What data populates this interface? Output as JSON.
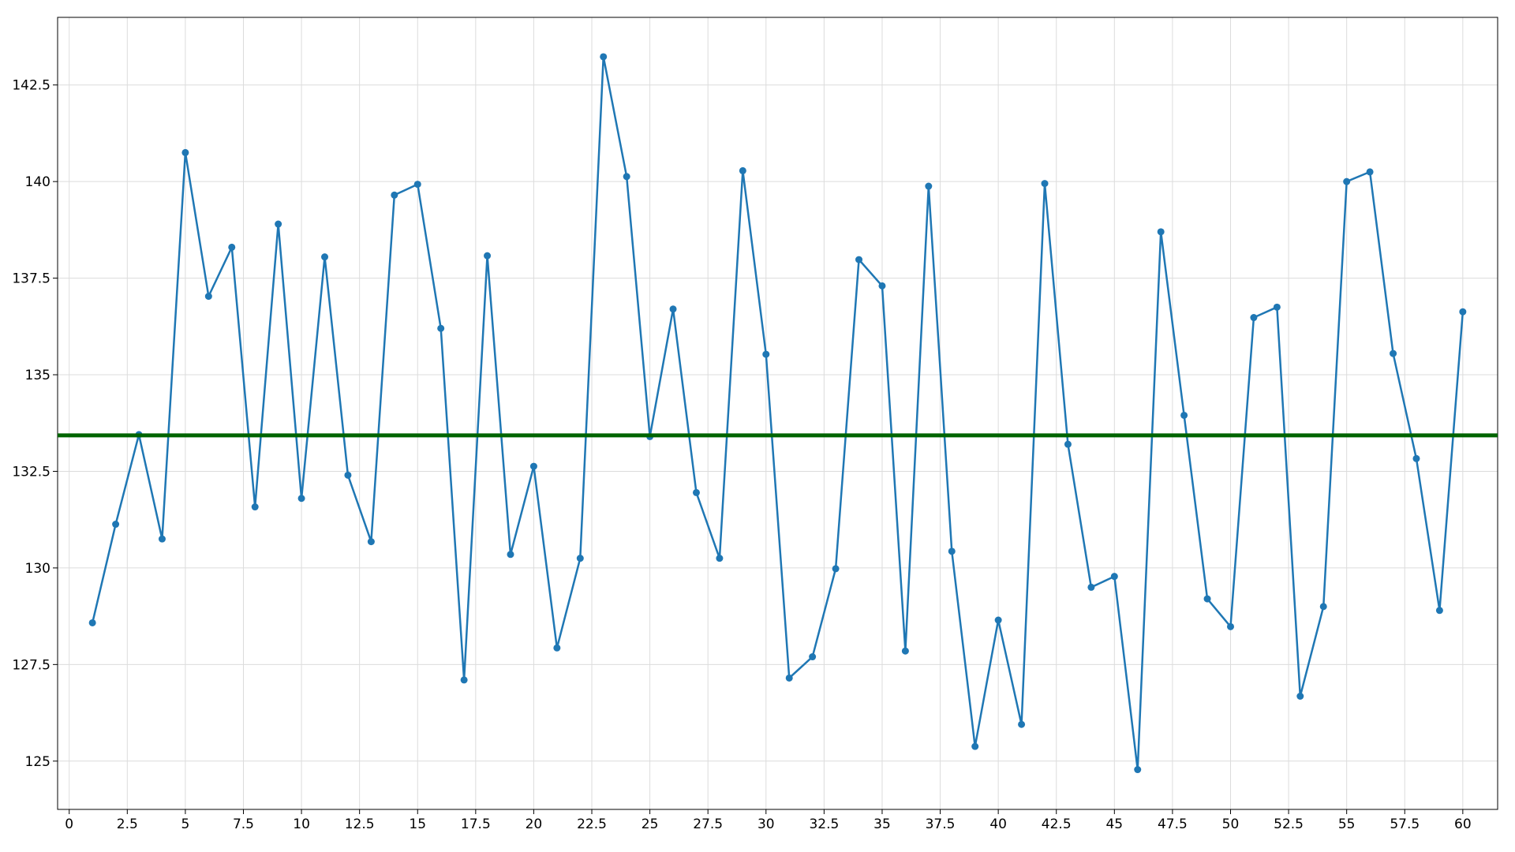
{
  "chart_data": {
    "type": "line",
    "x": [
      1,
      2,
      3,
      4,
      5,
      6,
      7,
      8,
      9,
      10,
      11,
      12,
      13,
      14,
      15,
      16,
      17,
      18,
      19,
      20,
      21,
      22,
      23,
      24,
      25,
      26,
      27,
      28,
      29,
      30,
      31,
      32,
      33,
      34,
      35,
      36,
      37,
      38,
      39,
      40,
      41,
      42,
      43,
      44,
      45,
      46,
      47,
      48,
      49,
      50,
      51,
      52,
      53,
      54,
      55,
      56,
      57,
      58,
      59,
      60
    ],
    "series": [
      {
        "color": "#1f77b4",
        "values": [
          128.58,
          131.13,
          133.45,
          130.75,
          140.75,
          137.03,
          138.3,
          131.58,
          138.9,
          131.8,
          138.05,
          132.4,
          130.68,
          139.65,
          139.93,
          136.2,
          127.1,
          138.08,
          130.35,
          132.63,
          127.93,
          130.25,
          143.23,
          140.13,
          133.4,
          136.7,
          131.95,
          130.25,
          140.28,
          135.53,
          127.15,
          127.7,
          129.98,
          137.98,
          137.3,
          127.85,
          139.88,
          130.43,
          125.38,
          128.65,
          125.95,
          139.95,
          133.2,
          129.5,
          129.78,
          124.78,
          138.7,
          133.95,
          129.2,
          128.48,
          136.48,
          136.75,
          126.68,
          129.0,
          140.0,
          140.25,
          135.55,
          132.83,
          128.9,
          136.63
        ]
      }
    ],
    "hline": {
      "value": 133.43,
      "color": "#006400"
    },
    "xlim": [
      -0.5,
      61.5
    ],
    "ylim": [
      123.75,
      144.25
    ],
    "xticks": [
      0,
      2.5,
      5,
      7.5,
      10,
      12.5,
      15,
      17.5,
      20,
      22.5,
      25,
      27.5,
      30,
      32.5,
      35,
      37.5,
      40,
      42.5,
      45,
      47.5,
      50,
      52.5,
      55,
      57.5,
      60
    ],
    "yticks": [
      125,
      127.5,
      130,
      132.5,
      135,
      137.5,
      140,
      142.5
    ],
    "grid": true
  }
}
